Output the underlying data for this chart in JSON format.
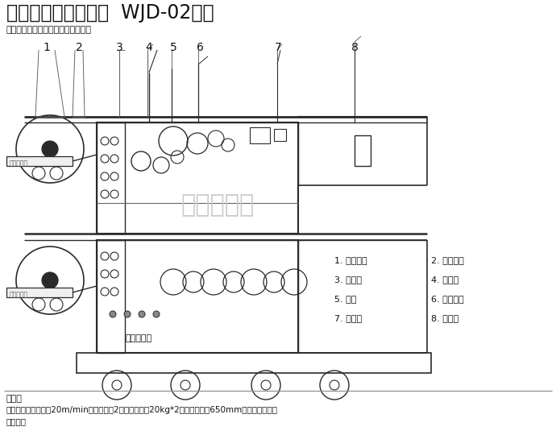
{
  "title1": "卧式光控端子收料机  WJD-02系列",
  "subtitle": "端子类产品光控收料（不灼伤端子）",
  "watermark_center": "晋志德机械",
  "company_lower": "晋志德机械",
  "company_left1": "晋志德机械",
  "company_left2": "晋志德机械",
  "parts_col1": [
    "1. 入料夹板",
    "3. 入料轮",
    "5. 导轮",
    "7. 纸带轮"
  ],
  "parts_col2": [
    "2. 光电开关",
    "4. 警示灯",
    "6. 控制面板",
    "8. 端子盘"
  ],
  "notes_title": "备注：",
  "notes_line1": "卧式收取，收取速度20m/min，收取盘数2盘，收取重量20kg*2，收取盘外径650mm，光电追踪控制",
  "notes_line2": "放料速度",
  "numbers": [
    "1",
    "2",
    "3",
    "4",
    "5",
    "6",
    "7",
    "8"
  ],
  "bg_color": "#ffffff",
  "lc": "#2a2a2a",
  "lc_light": "#666666",
  "watermark_color": "#cccccc"
}
